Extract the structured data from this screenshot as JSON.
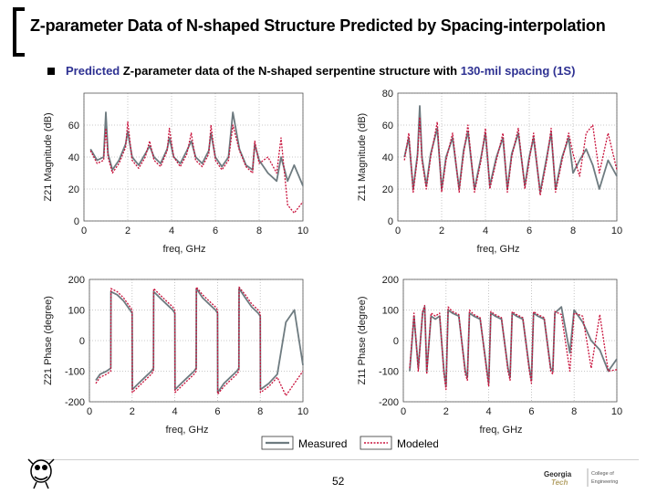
{
  "slide": {
    "title": "Z-parameter Data of N-shaped Structure Predicted by Spacing-interpolation",
    "bullet_prefix": "Predicted",
    "bullet_mid": " Z-parameter data of the N-shaped serpentine structure with ",
    "bullet_highlight": "130-mil spacing (1S)",
    "page_number": "52",
    "colors": {
      "accent": "#2e3192",
      "measured": "#6e7b80",
      "modeled": "#c8103a"
    }
  },
  "legend": {
    "measured": "Measured",
    "modeled": "Modeled"
  },
  "chart_data": [
    {
      "id": "z21-mag",
      "type": "line",
      "ylabel": "Z21 Magnitude (dB)",
      "xlabel": "freq, GHz",
      "xlim": [
        0,
        10
      ],
      "ylim": [
        0,
        80
      ],
      "xticks": [
        0,
        2,
        4,
        6,
        8,
        10
      ],
      "yticks": [
        0,
        20,
        40,
        60
      ],
      "series": [
        {
          "name": "Measured",
          "x": [
            0.3,
            0.6,
            0.9,
            1.0,
            1.1,
            1.3,
            1.6,
            1.9,
            2.0,
            2.2,
            2.5,
            2.8,
            3.0,
            3.2,
            3.5,
            3.8,
            3.9,
            4.1,
            4.4,
            4.7,
            4.9,
            5.1,
            5.4,
            5.7,
            5.8,
            6.0,
            6.3,
            6.6,
            6.8,
            7.1,
            7.4,
            7.7,
            7.8,
            8.0,
            8.4,
            8.8,
            9.0,
            9.3,
            9.6,
            10.0
          ],
          "y": [
            45,
            38,
            40,
            68,
            42,
            32,
            38,
            48,
            56,
            40,
            35,
            42,
            47,
            40,
            36,
            45,
            52,
            40,
            36,
            44,
            50,
            40,
            36,
            44,
            55,
            40,
            34,
            40,
            68,
            45,
            35,
            32,
            48,
            38,
            30,
            25,
            40,
            25,
            35,
            22
          ]
        },
        {
          "name": "Modeled",
          "x": [
            0.3,
            0.6,
            0.9,
            1.0,
            1.1,
            1.3,
            1.6,
            1.9,
            2.0,
            2.2,
            2.5,
            2.8,
            3.0,
            3.2,
            3.5,
            3.8,
            3.9,
            4.1,
            4.4,
            4.7,
            4.9,
            5.1,
            5.4,
            5.7,
            5.8,
            6.0,
            6.3,
            6.6,
            6.8,
            7.1,
            7.4,
            7.7,
            7.8,
            8.0,
            8.4,
            8.8,
            9.0,
            9.3,
            9.6,
            10.0
          ],
          "y": [
            44,
            36,
            38,
            58,
            40,
            30,
            36,
            46,
            62,
            38,
            33,
            40,
            50,
            38,
            34,
            44,
            58,
            40,
            34,
            42,
            55,
            38,
            34,
            42,
            60,
            38,
            32,
            38,
            60,
            44,
            34,
            30,
            50,
            36,
            40,
            30,
            52,
            10,
            5,
            12
          ]
        }
      ]
    },
    {
      "id": "z11-mag",
      "type": "line",
      "ylabel": "Z11 Magnitude (dB)",
      "xlabel": "freq, GHz",
      "xlim": [
        0,
        10
      ],
      "ylim": [
        0,
        80
      ],
      "xticks": [
        0,
        2,
        4,
        6,
        8,
        10
      ],
      "yticks": [
        0,
        20,
        40,
        60,
        80
      ],
      "series": [
        {
          "name": "Measured",
          "x": [
            0.3,
            0.5,
            0.7,
            0.9,
            1.0,
            1.1,
            1.3,
            1.5,
            1.8,
            2.0,
            2.2,
            2.5,
            2.8,
            3.0,
            3.2,
            3.5,
            3.8,
            4.0,
            4.2,
            4.5,
            4.8,
            5.0,
            5.2,
            5.5,
            5.8,
            6.0,
            6.2,
            6.5,
            6.8,
            7.0,
            7.2,
            7.5,
            7.8,
            8.0,
            8.3,
            8.6,
            8.9,
            9.2,
            9.6,
            10.0
          ],
          "y": [
            40,
            52,
            20,
            42,
            72,
            40,
            22,
            42,
            58,
            20,
            40,
            52,
            20,
            44,
            56,
            20,
            40,
            55,
            22,
            40,
            52,
            20,
            42,
            55,
            22,
            40,
            52,
            18,
            40,
            55,
            20,
            40,
            52,
            30,
            38,
            45,
            35,
            20,
            38,
            28
          ]
        },
        {
          "name": "Modeled",
          "x": [
            0.3,
            0.5,
            0.7,
            0.9,
            1.0,
            1.1,
            1.3,
            1.5,
            1.8,
            2.0,
            2.2,
            2.5,
            2.8,
            3.0,
            3.2,
            3.5,
            3.8,
            4.0,
            4.2,
            4.5,
            4.8,
            5.0,
            5.2,
            5.5,
            5.8,
            6.0,
            6.2,
            6.5,
            6.8,
            7.0,
            7.2,
            7.5,
            7.8,
            8.0,
            8.3,
            8.6,
            8.9,
            9.2,
            9.6,
            10.0
          ],
          "y": [
            38,
            55,
            18,
            40,
            65,
            38,
            20,
            40,
            62,
            18,
            38,
            55,
            18,
            42,
            60,
            18,
            38,
            58,
            20,
            38,
            55,
            18,
            40,
            58,
            20,
            38,
            55,
            16,
            38,
            58,
            18,
            38,
            55,
            42,
            28,
            55,
            60,
            30,
            55,
            32
          ]
        }
      ]
    },
    {
      "id": "z21-phase",
      "type": "line",
      "ylabel": "Z21 Phase (degree)",
      "xlabel": "freq, GHz",
      "xlim": [
        0,
        10
      ],
      "ylim": [
        -200,
        200
      ],
      "xticks": [
        0,
        2,
        4,
        6,
        8,
        10
      ],
      "yticks": [
        -200,
        -100,
        0,
        100,
        200
      ],
      "series": [
        {
          "name": "Measured",
          "x": [
            0.3,
            0.5,
            0.8,
            1.0,
            1.01,
            1.3,
            1.6,
            1.9,
            2.0,
            2.01,
            2.3,
            2.6,
            2.9,
            3.0,
            3.01,
            3.3,
            3.6,
            3.9,
            4.0,
            4.01,
            4.3,
            4.6,
            4.9,
            5.0,
            5.01,
            5.3,
            5.6,
            5.9,
            6.0,
            6.01,
            6.3,
            6.6,
            6.9,
            7.0,
            7.01,
            7.3,
            7.6,
            7.9,
            8.0,
            8.01,
            8.4,
            8.8,
            9.2,
            9.6,
            10.0
          ],
          "y": [
            -130,
            -110,
            -100,
            -90,
            160,
            150,
            130,
            100,
            90,
            -160,
            -140,
            -120,
            -100,
            -90,
            160,
            140,
            120,
            100,
            90,
            -160,
            -140,
            -120,
            -100,
            -90,
            170,
            140,
            120,
            100,
            90,
            -170,
            -140,
            -120,
            -100,
            -90,
            170,
            140,
            110,
            90,
            80,
            -160,
            -140,
            -110,
            60,
            100,
            -80
          ]
        },
        {
          "name": "Modeled",
          "x": [
            0.3,
            0.5,
            0.8,
            1.0,
            1.01,
            1.3,
            1.6,
            1.9,
            2.0,
            2.01,
            2.3,
            2.6,
            2.9,
            3.0,
            3.01,
            3.3,
            3.6,
            3.9,
            4.0,
            4.01,
            4.3,
            4.6,
            4.9,
            5.0,
            5.01,
            5.3,
            5.6,
            5.9,
            6.0,
            6.01,
            6.3,
            6.6,
            6.9,
            7.0,
            7.01,
            7.3,
            7.6,
            7.9,
            8.0,
            8.01,
            8.4,
            8.8,
            9.2,
            9.6,
            10.0
          ],
          "y": [
            -140,
            -120,
            -110,
            -100,
            170,
            160,
            140,
            110,
            100,
            -170,
            -150,
            -130,
            -110,
            -100,
            170,
            150,
            130,
            110,
            100,
            -170,
            -150,
            -130,
            -110,
            -100,
            175,
            150,
            130,
            110,
            100,
            -175,
            -150,
            -130,
            -110,
            -100,
            175,
            150,
            120,
            100,
            90,
            -170,
            -150,
            -120,
            -180,
            -140,
            -100
          ]
        }
      ]
    },
    {
      "id": "z11-phase",
      "type": "line",
      "ylabel": "Z11 Phase (degree)",
      "xlabel": "freq, GHz",
      "xlim": [
        0,
        10
      ],
      "ylim": [
        -200,
        200
      ],
      "xticks": [
        0,
        2,
        4,
        6,
        8,
        10
      ],
      "yticks": [
        -200,
        -100,
        0,
        100,
        200
      ],
      "series": [
        {
          "name": "Measured",
          "x": [
            0.3,
            0.5,
            0.7,
            0.9,
            1.0,
            1.1,
            1.3,
            1.5,
            1.7,
            1.9,
            2.0,
            2.1,
            2.3,
            2.6,
            2.9,
            3.0,
            3.1,
            3.3,
            3.6,
            3.9,
            4.0,
            4.1,
            4.3,
            4.6,
            4.9,
            5.0,
            5.1,
            5.3,
            5.6,
            5.9,
            6.0,
            6.1,
            6.3,
            6.6,
            6.9,
            7.0,
            7.1,
            7.4,
            7.8,
            8.0,
            8.4,
            8.8,
            9.2,
            9.6,
            10.0
          ],
          "y": [
            -100,
            80,
            -90,
            90,
            110,
            -100,
            80,
            70,
            80,
            -100,
            -150,
            100,
            90,
            80,
            -100,
            -120,
            90,
            80,
            70,
            -90,
            -140,
            90,
            80,
            70,
            -90,
            -120,
            90,
            80,
            70,
            -90,
            -130,
            90,
            80,
            70,
            -90,
            -100,
            90,
            110,
            -40,
            100,
            60,
            0,
            -30,
            -100,
            -60
          ]
        },
        {
          "name": "Modeled",
          "x": [
            0.3,
            0.5,
            0.7,
            0.9,
            1.0,
            1.1,
            1.3,
            1.5,
            1.7,
            1.9,
            2.0,
            2.1,
            2.3,
            2.6,
            2.9,
            3.0,
            3.1,
            3.3,
            3.6,
            3.9,
            4.0,
            4.1,
            4.3,
            4.6,
            4.9,
            5.0,
            5.1,
            5.3,
            5.6,
            5.9,
            6.0,
            6.1,
            6.3,
            6.6,
            6.9,
            7.0,
            7.1,
            7.4,
            7.8,
            8.0,
            8.4,
            8.8,
            9.2,
            9.6,
            10.0
          ],
          "y": [
            -90,
            90,
            -100,
            95,
            115,
            -110,
            90,
            80,
            90,
            -110,
            -160,
            110,
            95,
            85,
            -110,
            -130,
            100,
            85,
            75,
            -100,
            -150,
            95,
            85,
            75,
            -100,
            -130,
            95,
            85,
            75,
            -100,
            -140,
            95,
            85,
            75,
            -100,
            -110,
            95,
            85,
            -100,
            90,
            80,
            -90,
            85,
            -100,
            -95
          ]
        }
      ]
    }
  ]
}
